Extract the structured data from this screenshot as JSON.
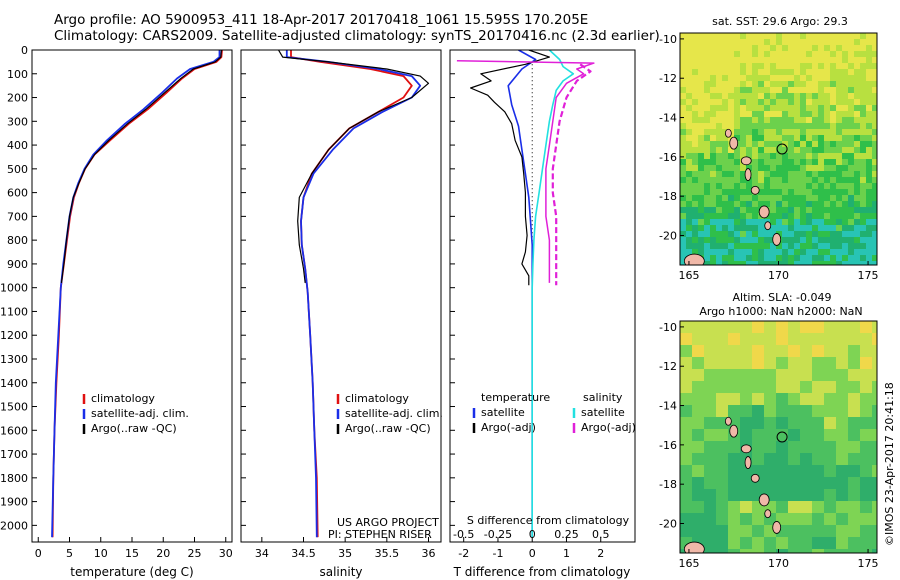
{
  "title_line1": "Argo profile: AO 5900953_411 18-Apr-2017 20170418_1061 15.595S 170.205E",
  "title_line2": "Climatology: CARS2009. Satellite-adjusted climatology: synTS_20170416.nc (2.3d earlier)",
  "sst_title": "sat. SST: 29.6 Argo: 29.3",
  "sla_title1": "Altim. SLA: -0.049",
  "sla_title2": "Argo h1000: NaN h2000: NaN",
  "side_stamp": "©IMOS 23-Apr-2017 20:41:18",
  "project_line1": "US ARGO PROJECT",
  "project_line2": "PI: STEPHEN RISER",
  "colors": {
    "red": "#e01010",
    "blue": "#1a2ee8",
    "black": "#000000",
    "cyan": "#22e0e0",
    "magenta": "#e020d8"
  },
  "chart_data": [
    {
      "type": "line",
      "name": "temperature",
      "xlabel": "temperature (deg C)",
      "xlim": [
        -1,
        31
      ],
      "xticks": [
        0,
        5,
        10,
        15,
        20,
        25,
        30
      ],
      "ylim": [
        0,
        2070
      ],
      "yticks": [
        0,
        100,
        200,
        300,
        400,
        500,
        600,
        700,
        800,
        900,
        1000,
        1100,
        1200,
        1300,
        1400,
        1500,
        1600,
        1700,
        1800,
        1900,
        2000
      ],
      "legend": [
        {
          "label": "climatology",
          "color": "#e01010"
        },
        {
          "label": "satellite-adj. clim.",
          "color": "#1a2ee8"
        },
        {
          "label": "Argo(..raw -QC)",
          "color": "#000000"
        }
      ],
      "series": [
        {
          "name": "climatology",
          "color": "#e01010",
          "width": 1.8,
          "points": [
            [
              29.4,
              0
            ],
            [
              29.3,
              30
            ],
            [
              28.5,
              50
            ],
            [
              25,
              80
            ],
            [
              23,
              120
            ],
            [
              20.5,
              180
            ],
            [
              17.5,
              250
            ],
            [
              14.5,
              310
            ],
            [
              11.5,
              380
            ],
            [
              9,
              440
            ],
            [
              7.5,
              500
            ],
            [
              6.5,
              560
            ],
            [
              5.7,
              620
            ],
            [
              5.1,
              700
            ],
            [
              4.6,
              800
            ],
            [
              4.1,
              900
            ],
            [
              3.6,
              1000
            ],
            [
              3.3,
              1200
            ],
            [
              2.9,
              1400
            ],
            [
              2.6,
              1600
            ],
            [
              2.4,
              1800
            ],
            [
              2.3,
              2050
            ]
          ]
        },
        {
          "name": "satellite-adj. clim.",
          "color": "#1a2ee8",
          "width": 1.8,
          "points": [
            [
              29.0,
              0
            ],
            [
              29.0,
              30
            ],
            [
              28.0,
              50
            ],
            [
              24.3,
              80
            ],
            [
              22.2,
              120
            ],
            [
              19.8,
              180
            ],
            [
              16.8,
              250
            ],
            [
              13.9,
              310
            ],
            [
              11.0,
              380
            ],
            [
              8.8,
              440
            ],
            [
              7.4,
              500
            ],
            [
              6.4,
              560
            ],
            [
              5.6,
              620
            ],
            [
              5.0,
              700
            ],
            [
              4.5,
              800
            ],
            [
              4.0,
              900
            ],
            [
              3.6,
              1000
            ],
            [
              3.2,
              1200
            ],
            [
              2.8,
              1400
            ],
            [
              2.6,
              1600
            ],
            [
              2.4,
              1800
            ],
            [
              2.2,
              2050
            ]
          ]
        },
        {
          "name": "Argo",
          "color": "#000000",
          "width": 1.2,
          "points": [
            [
              29.3,
              0
            ],
            [
              29.2,
              30
            ],
            [
              28.3,
              50
            ],
            [
              24.8,
              80
            ],
            [
              22.8,
              120
            ],
            [
              20.2,
              180
            ],
            [
              17.2,
              250
            ],
            [
              14.3,
              310
            ],
            [
              11.3,
              380
            ],
            [
              9.0,
              440
            ],
            [
              7.5,
              500
            ],
            [
              6.5,
              560
            ],
            [
              5.6,
              620
            ],
            [
              5.0,
              700
            ],
            [
              4.5,
              800
            ],
            [
              4.1,
              900
            ],
            [
              3.7,
              980
            ]
          ]
        }
      ]
    },
    {
      "type": "line",
      "name": "salinity",
      "xlabel": "salinity",
      "xlim": [
        33.75,
        36.15
      ],
      "xticks": [
        34,
        34.5,
        35,
        35.5,
        36
      ],
      "ylim": [
        0,
        2070
      ],
      "legend": [
        {
          "label": "climatology",
          "color": "#e01010"
        },
        {
          "label": "satellite-adj. clim.",
          "color": "#1a2ee8"
        },
        {
          "label": "Argo(..raw -QC)",
          "color": "#000000"
        }
      ],
      "series": [
        {
          "name": "climatology",
          "color": "#e01010",
          "width": 1.8,
          "points": [
            [
              34.35,
              0
            ],
            [
              34.35,
              30
            ],
            [
              34.7,
              50
            ],
            [
              35.3,
              80
            ],
            [
              35.7,
              110
            ],
            [
              35.8,
              150
            ],
            [
              35.7,
              200
            ],
            [
              35.4,
              260
            ],
            [
              35.05,
              330
            ],
            [
              34.8,
              420
            ],
            [
              34.6,
              520
            ],
            [
              34.5,
              620
            ],
            [
              34.47,
              720
            ],
            [
              34.48,
              820
            ],
            [
              34.52,
              920
            ],
            [
              34.55,
              1020
            ],
            [
              34.58,
              1200
            ],
            [
              34.61,
              1400
            ],
            [
              34.63,
              1600
            ],
            [
              34.66,
              1800
            ],
            [
              34.67,
              2050
            ]
          ]
        },
        {
          "name": "satellite-adj. clim.",
          "color": "#1a2ee8",
          "width": 1.8,
          "points": [
            [
              34.3,
              0
            ],
            [
              34.3,
              30
            ],
            [
              34.8,
              50
            ],
            [
              35.4,
              80
            ],
            [
              35.8,
              110
            ],
            [
              35.9,
              150
            ],
            [
              35.8,
              200
            ],
            [
              35.45,
              260
            ],
            [
              35.1,
              330
            ],
            [
              34.85,
              420
            ],
            [
              34.62,
              520
            ],
            [
              34.5,
              620
            ],
            [
              34.47,
              720
            ],
            [
              34.48,
              820
            ],
            [
              34.52,
              920
            ],
            [
              34.55,
              1020
            ],
            [
              34.58,
              1200
            ],
            [
              34.61,
              1400
            ],
            [
              34.63,
              1600
            ],
            [
              34.65,
              1800
            ],
            [
              34.66,
              2050
            ]
          ]
        },
        {
          "name": "Argo",
          "color": "#000000",
          "width": 1.2,
          "points": [
            [
              34.2,
              0
            ],
            [
              34.25,
              30
            ],
            [
              34.8,
              50
            ],
            [
              35.5,
              80
            ],
            [
              35.9,
              110
            ],
            [
              36.0,
              140
            ],
            [
              35.8,
              200
            ],
            [
              35.4,
              260
            ],
            [
              35.05,
              330
            ],
            [
              34.8,
              420
            ],
            [
              34.6,
              520
            ],
            [
              34.45,
              620
            ],
            [
              34.43,
              720
            ],
            [
              34.45,
              820
            ],
            [
              34.5,
              920
            ],
            [
              34.52,
              980
            ]
          ]
        }
      ]
    },
    {
      "type": "line",
      "name": "differences",
      "xlabel_bottom": "T difference from climatology",
      "xticks_bottom": [
        -2,
        -1,
        0,
        1,
        2
      ],
      "xlabel_top": "S difference from climatology",
      "xticks_top": [
        "-0.5",
        "-0.25",
        "0",
        "0.25",
        "0.5"
      ],
      "xlim": [
        -2.4,
        3.0
      ],
      "ylim": [
        0,
        2070
      ],
      "legend_left_title": "temperature",
      "legend_right_title": "salinity",
      "legend": [
        {
          "label": "satellite",
          "color": "#1a2ee8",
          "group": "temperature"
        },
        {
          "label": "Argo(-adj)",
          "color": "#000000",
          "group": "temperature"
        },
        {
          "label": "satellite",
          "color": "#22e0e0",
          "group": "salinity"
        },
        {
          "label": "Argo(-adj)",
          "color": "#e020d8",
          "group": "salinity"
        }
      ],
      "series": [
        {
          "name": "T satellite",
          "color": "#1a2ee8",
          "width": 1.6,
          "points": [
            [
              -0.4,
              0
            ],
            [
              0.1,
              40
            ],
            [
              -0.3,
              80
            ],
            [
              -0.7,
              150
            ],
            [
              -0.6,
              230
            ],
            [
              -0.4,
              320
            ],
            [
              -0.3,
              420
            ],
            [
              -0.2,
              520
            ],
            [
              -0.1,
              620
            ],
            [
              -0.05,
              720
            ],
            [
              0,
              820
            ],
            [
              0,
              900
            ],
            [
              0,
              1000
            ],
            [
              0,
              1200
            ],
            [
              0,
              1500
            ],
            [
              0,
              2050
            ]
          ]
        },
        {
          "name": "T Argo",
          "color": "#000000",
          "width": 1.2,
          "points": [
            [
              -0.1,
              0
            ],
            [
              0.5,
              30
            ],
            [
              -0.2,
              60
            ],
            [
              -1.5,
              100
            ],
            [
              -1.2,
              130
            ],
            [
              -1.8,
              160
            ],
            [
              -1.3,
              190
            ],
            [
              -1.1,
              220
            ],
            [
              -0.8,
              260
            ],
            [
              -0.6,
              310
            ],
            [
              -0.5,
              380
            ],
            [
              -0.3,
              450
            ],
            [
              -0.25,
              520
            ],
            [
              -0.2,
              600
            ],
            [
              -0.2,
              700
            ],
            [
              -0.15,
              780
            ],
            [
              -0.2,
              850
            ],
            [
              -0.3,
              900
            ],
            [
              -0.1,
              950
            ],
            [
              -0.1,
              990
            ]
          ]
        },
        {
          "name": "S satellite",
          "color": "#22e0e0",
          "width": 1.6,
          "points": [
            [
              0.5,
              0
            ],
            [
              0.8,
              40
            ],
            [
              0.9,
              70
            ],
            [
              1.2,
              100
            ],
            [
              0.9,
              130
            ],
            [
              0.7,
              170
            ],
            [
              0.6,
              230
            ],
            [
              0.5,
              300
            ],
            [
              0.4,
              400
            ],
            [
              0.3,
              500
            ],
            [
              0.2,
              600
            ],
            [
              0.1,
              700
            ],
            [
              0.05,
              800
            ],
            [
              0.02,
              900
            ],
            [
              0,
              1000
            ],
            [
              0,
              1200
            ],
            [
              0,
              1500
            ],
            [
              0,
              2050
            ]
          ]
        },
        {
          "name": "S Argo",
          "color": "#e020d8",
          "width": 1.5,
          "points": [
            [
              -2.2,
              45
            ],
            [
              1.8,
              55
            ],
            [
              1.3,
              80
            ],
            [
              1.5,
              100
            ],
            [
              1.0,
              140
            ],
            [
              0.7,
              200
            ],
            [
              0.6,
              300
            ],
            [
              0.5,
              400
            ],
            [
              0.4,
              500
            ],
            [
              0.4,
              600
            ],
            [
              0.4,
              700
            ],
            [
              0.5,
              800
            ],
            [
              0.5,
              900
            ],
            [
              0.5,
              980
            ]
          ]
        },
        {
          "name": "S Argo dashed",
          "color": "#e020d8",
          "width": 2.2,
          "dashed": true,
          "points": [
            [
              1.4,
              60
            ],
            [
              1.7,
              90
            ],
            [
              1.3,
              130
            ],
            [
              1.0,
              200
            ],
            [
              0.8,
              300
            ],
            [
              0.7,
              400
            ],
            [
              0.6,
              500
            ],
            [
              0.6,
              600
            ],
            [
              0.7,
              700
            ],
            [
              0.7,
              800
            ],
            [
              0.7,
              900
            ],
            [
              0.7,
              990
            ]
          ]
        }
      ]
    },
    {
      "type": "heatmap",
      "name": "sst-map",
      "title": "sat. SST: 29.6 Argo: 29.3",
      "xticks": [
        "165",
        "170",
        "175"
      ],
      "yticks": [
        "-10",
        "-12",
        "-14",
        "-16",
        "-18",
        "-20"
      ],
      "xlim": [
        164.5,
        175.5
      ],
      "ylim": [
        -21.5,
        -9.7
      ],
      "argo_position": [
        170.2,
        -15.6
      ]
    },
    {
      "type": "heatmap",
      "name": "sla-map",
      "title": "Altim. SLA: -0.049",
      "xticks": [
        "165",
        "170",
        "175"
      ],
      "yticks": [
        "-10",
        "-12",
        "-14",
        "-16",
        "-18",
        "-20"
      ],
      "xlim": [
        164.5,
        175.5
      ],
      "ylim": [
        -21.5,
        -9.7
      ],
      "argo_position": [
        170.2,
        -15.6
      ]
    }
  ]
}
